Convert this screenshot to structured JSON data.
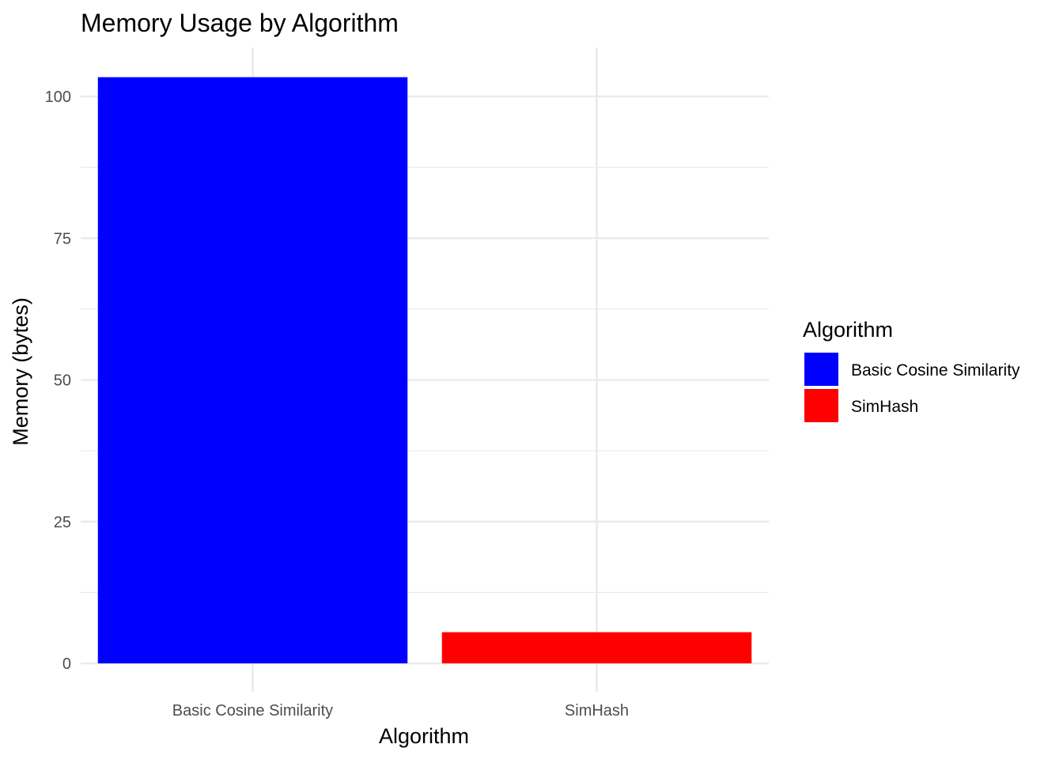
{
  "chart_data": {
    "type": "bar",
    "title": "Memory Usage by Algorithm",
    "xlabel": "Algorithm",
    "ylabel": "Memory (bytes)",
    "categories": [
      "Basic Cosine Similarity",
      "SimHash"
    ],
    "values": [
      103.4,
      5.5
    ],
    "colors": [
      "#0000ff",
      "#ff0000"
    ],
    "ylim": [
      0,
      108
    ],
    "yticks": [
      0,
      25,
      50,
      75,
      100
    ],
    "y_minor_ticks": [
      12.5,
      37.5,
      62.5,
      87.5
    ],
    "grid": true,
    "legend": {
      "title": "Algorithm",
      "position": "right",
      "entries": [
        "Basic Cosine Similarity",
        "SimHash"
      ]
    }
  }
}
